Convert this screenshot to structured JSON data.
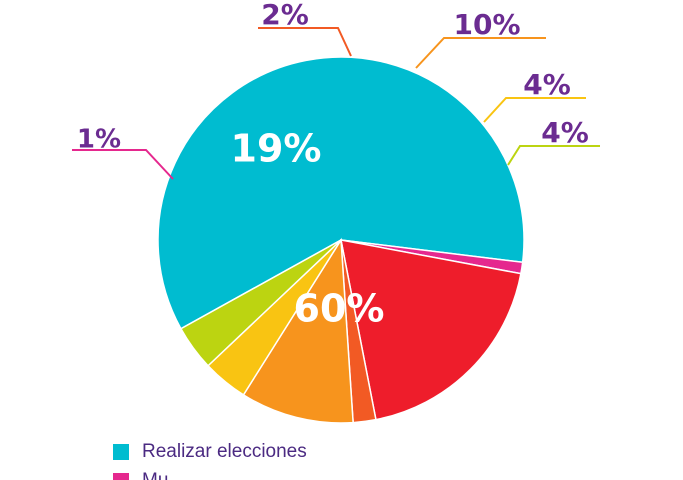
{
  "chart_data": {
    "type": "pie",
    "series": [
      {
        "label": "Realizar elecciones",
        "value": 60,
        "display": "60%",
        "color": "#00bcd0"
      },
      {
        "label": "Mu...",
        "value": 1,
        "display": "1%",
        "color": "#e5288e"
      },
      {
        "label": "",
        "value": 19,
        "display": "19%",
        "color": "#ee1d2b"
      },
      {
        "label": "",
        "value": 2,
        "display": "2%",
        "color": "#f25a24"
      },
      {
        "label": "",
        "value": 10,
        "display": "10%",
        "color": "#f7941d"
      },
      {
        "label": "",
        "value": 4,
        "display": "4%",
        "color": "#f9c412"
      },
      {
        "label": "",
        "value": 4,
        "display": "4%",
        "color": "#bcd411"
      }
    ],
    "legend": [
      {
        "text": "Realizar elecciones",
        "color": "#00bcd0"
      },
      {
        "text": "Mu",
        "color": "#e5288e"
      }
    ],
    "legend_position": "bottom-left"
  }
}
